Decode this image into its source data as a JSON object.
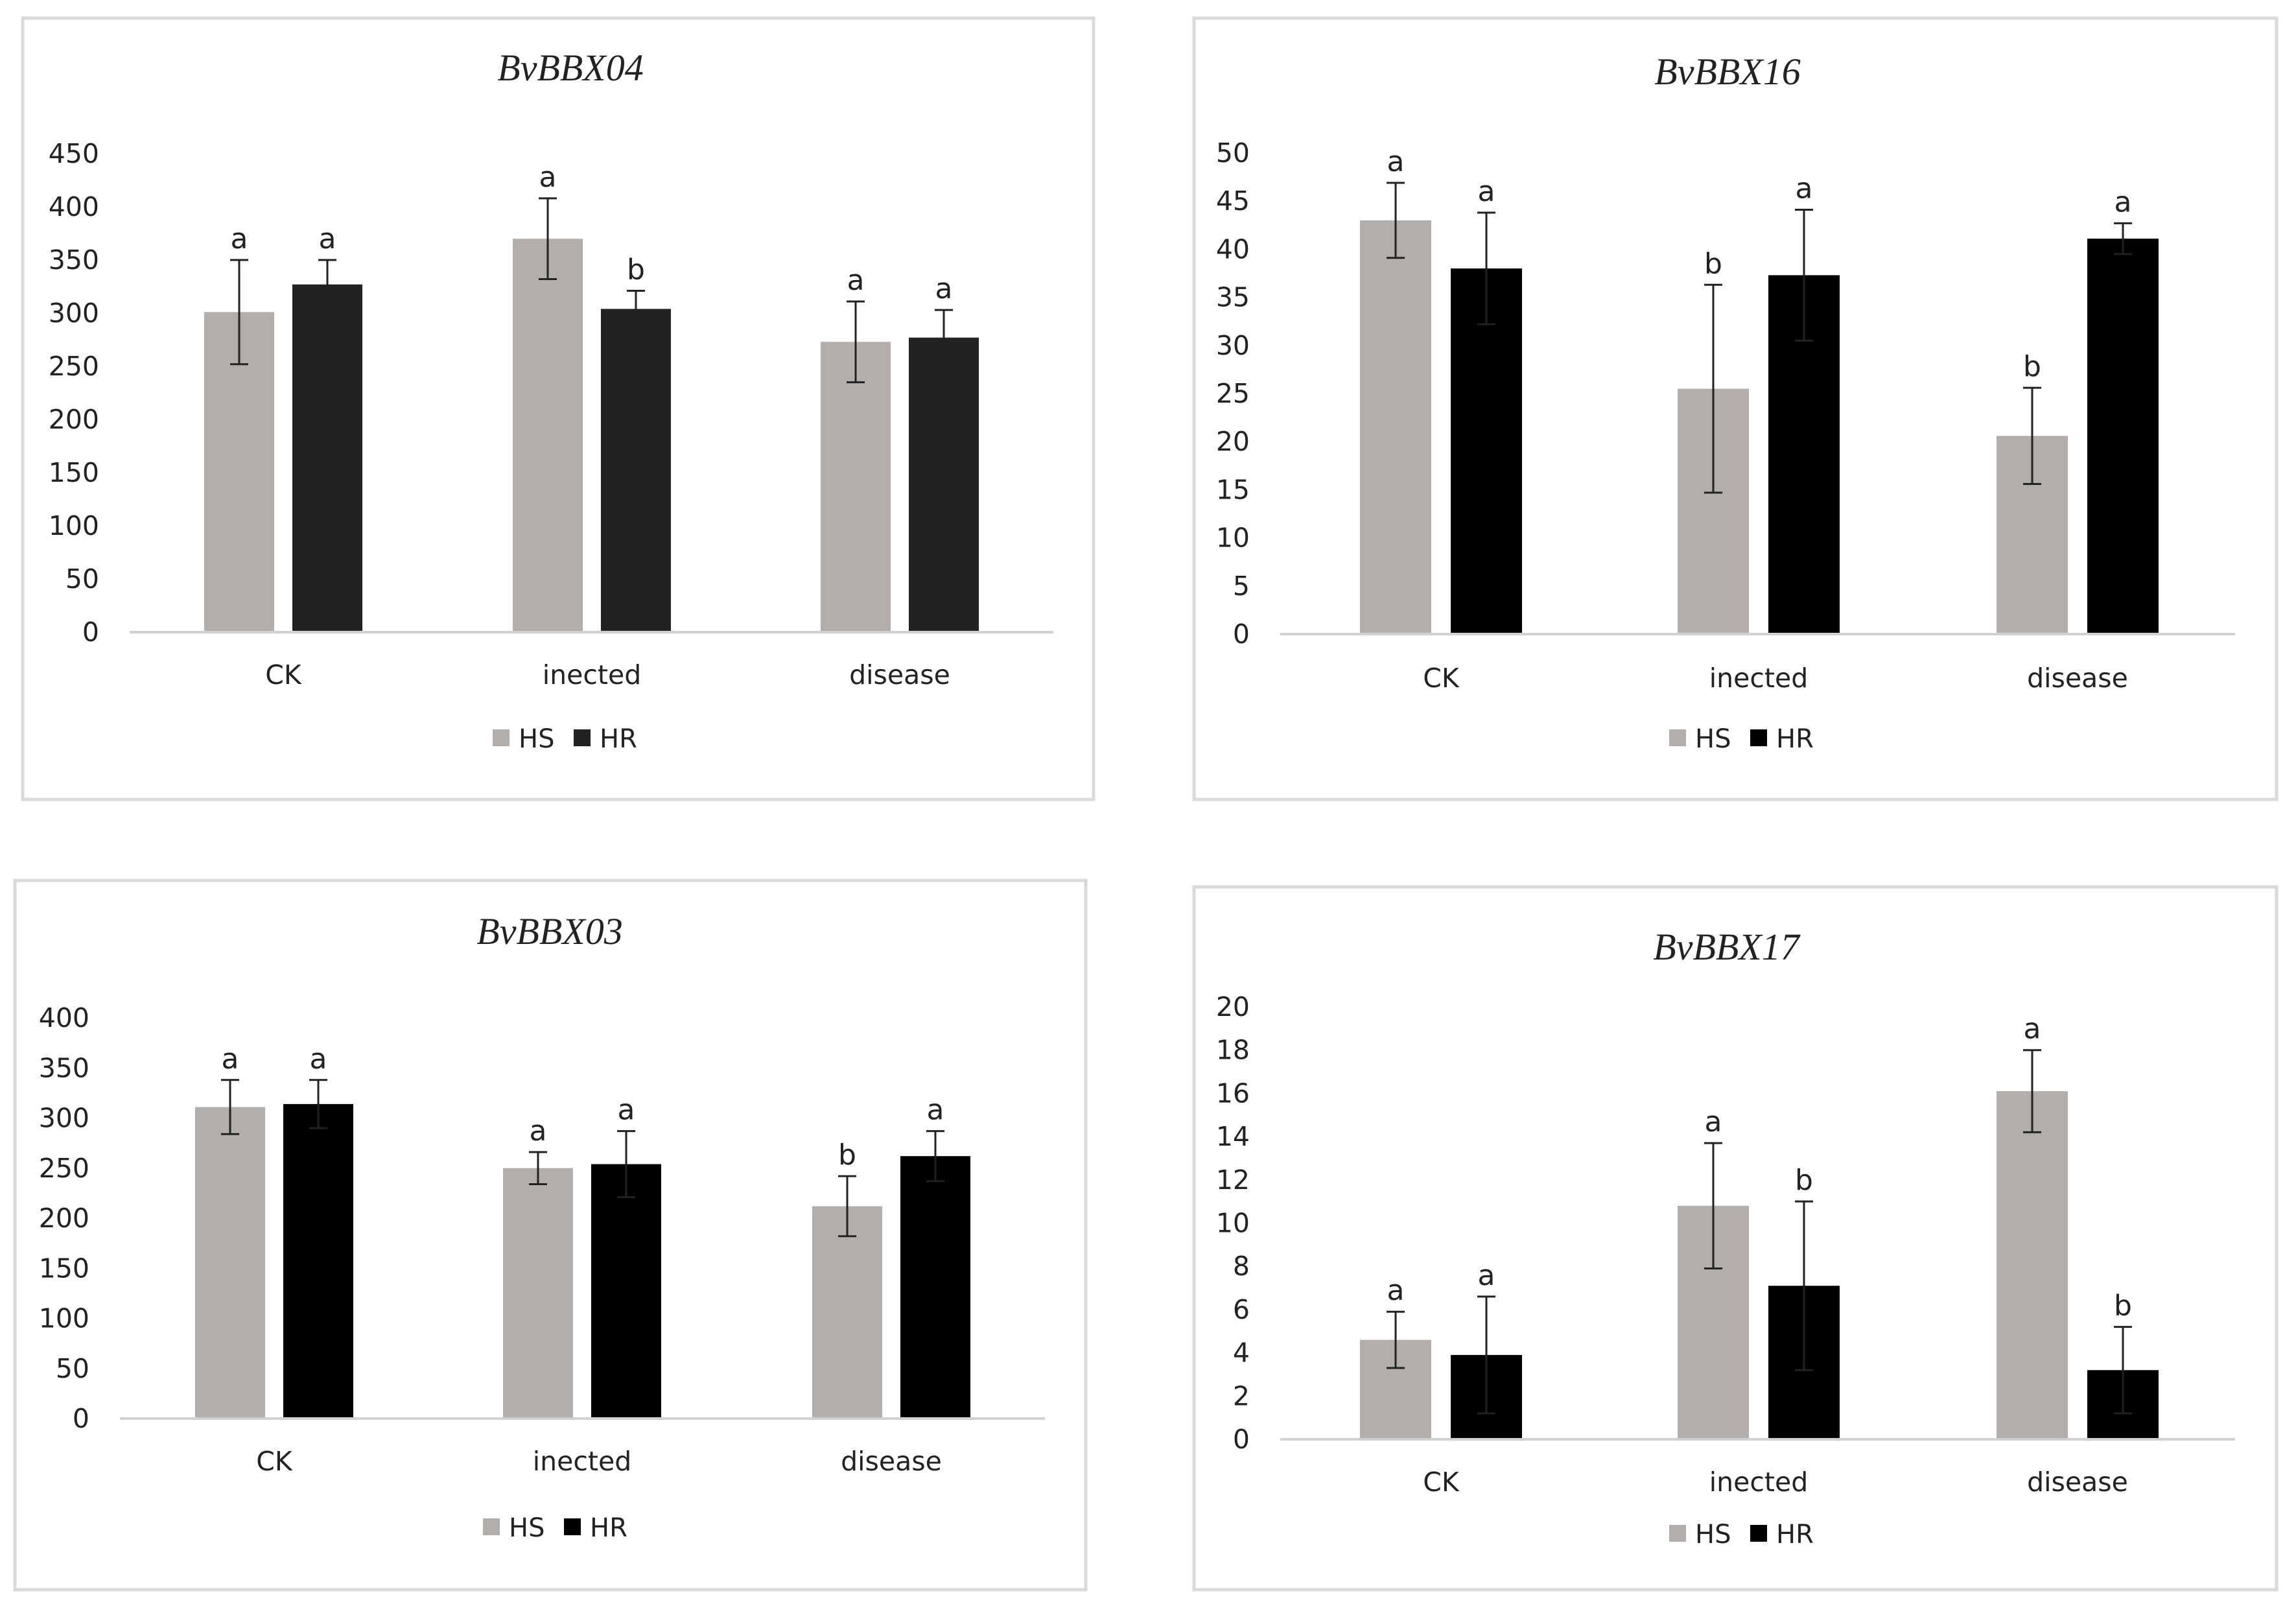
{
  "chart_data": [
    {
      "type": "bar",
      "title": "BvBBX04",
      "categories": [
        "CK",
        "inected",
        "disease"
      ],
      "ylim": [
        0,
        450
      ],
      "yticks": [
        "0",
        "50",
        "100",
        "150",
        "200",
        "250",
        "300",
        "350",
        "400",
        "450"
      ],
      "series": [
        {
          "name": "HS",
          "color": "#b2aeac",
          "values": [
            301,
            370,
            273
          ],
          "errors": [
            49,
            38,
            38
          ],
          "labels": [
            "a",
            "a",
            "a"
          ]
        },
        {
          "name": "HR",
          "color": "#222222",
          "values": [
            327,
            304,
            277
          ],
          "errors": [
            23,
            17,
            26
          ],
          "labels": [
            "a",
            "b",
            "a"
          ]
        }
      ],
      "xlabel": "",
      "ylabel": "",
      "legend": "bottom-center"
    },
    {
      "type": "bar",
      "title": "BvBBX16",
      "categories": [
        "CK",
        "inected",
        "disease"
      ],
      "ylim": [
        0,
        50
      ],
      "yticks": [
        "0",
        "5",
        "10",
        "15",
        "20",
        "25",
        "30",
        "35",
        "40",
        "45",
        "50"
      ],
      "series": [
        {
          "name": "HS",
          "color": "#b2aeac",
          "values": [
            43,
            25.5,
            20.6
          ],
          "errors": [
            3.9,
            10.8,
            5
          ],
          "labels": [
            "a",
            "b",
            "b"
          ]
        },
        {
          "name": "HR",
          "color": "#000000",
          "values": [
            38,
            37.3,
            41.1
          ],
          "errors": [
            5.8,
            6.8,
            1.6
          ],
          "labels": [
            "a",
            "a",
            "a"
          ]
        }
      ],
      "xlabel": "",
      "ylabel": "",
      "legend": "bottom-center"
    },
    {
      "type": "bar",
      "title": "BvBBX03",
      "categories": [
        "CK",
        "inected",
        "disease"
      ],
      "ylim": [
        0,
        400
      ],
      "yticks": [
        "0",
        "50",
        "100",
        "150",
        "200",
        "250",
        "300",
        "350",
        "400"
      ],
      "series": [
        {
          "name": "HS",
          "color": "#b2aeac",
          "values": [
            311,
            250,
            212
          ],
          "errors": [
            27,
            16,
            30
          ],
          "labels": [
            "a",
            "a",
            "b"
          ]
        },
        {
          "name": "HR",
          "color": "#000000",
          "values": [
            314,
            254,
            262
          ],
          "errors": [
            24,
            33,
            25
          ],
          "labels": [
            "a",
            "a",
            "a"
          ]
        }
      ],
      "xlabel": "",
      "ylabel": "",
      "legend": "bottom-center"
    },
    {
      "type": "bar",
      "title": "BvBBX17",
      "categories": [
        "CK",
        "inected",
        "disease"
      ],
      "ylim": [
        0,
        20
      ],
      "yticks": [
        "0",
        "2",
        "4",
        "6",
        "8",
        "10",
        "12",
        "14",
        "16",
        "18",
        "20"
      ],
      "series": [
        {
          "name": "HS",
          "color": "#b2aeac",
          "values": [
            4.6,
            10.8,
            16.1
          ],
          "errors": [
            1.3,
            2.9,
            1.9
          ],
          "labels": [
            "a",
            "a",
            "a"
          ]
        },
        {
          "name": "HR",
          "color": "#000000",
          "values": [
            3.9,
            7.1,
            3.2
          ],
          "errors": [
            2.7,
            3.9,
            2
          ],
          "labels": [
            "a",
            "b",
            "b"
          ]
        }
      ],
      "xlabel": "",
      "ylabel": "",
      "legend": "bottom-center"
    }
  ]
}
